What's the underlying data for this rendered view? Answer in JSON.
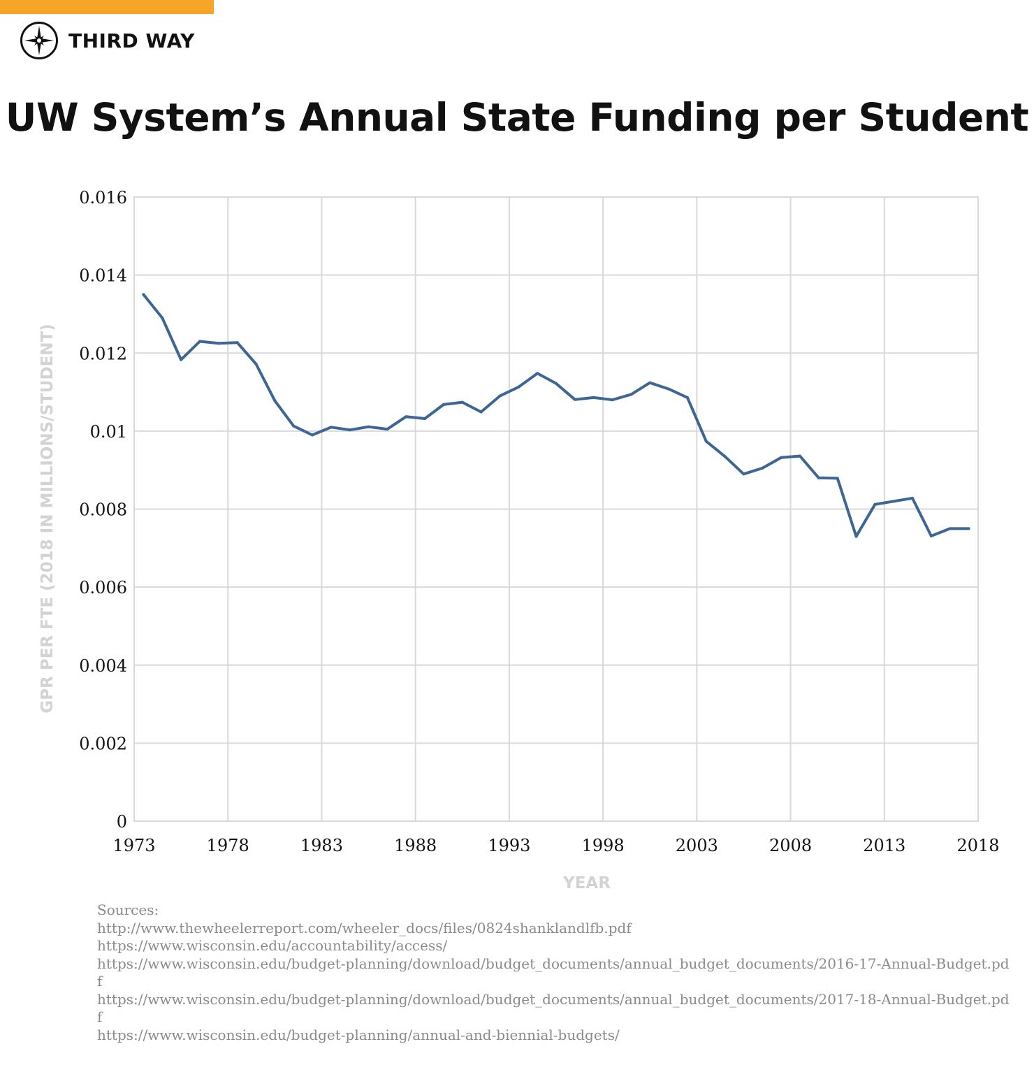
{
  "brand": {
    "name": "THIRD WAY",
    "accent_color": "#f7a527",
    "logo_icon": "compass-star-icon"
  },
  "chart_data": {
    "type": "line",
    "title": "UW System’s Annual State Funding per Student",
    "xlabel": "YEAR",
    "ylabel": "GPR PER FTE (2018 IN MILLIONS/STUDENT)",
    "x_ticks": [
      "1973",
      "1978",
      "1983",
      "1988",
      "1993",
      "1998",
      "2003",
      "2008",
      "2013",
      "2018"
    ],
    "y_ticks": [
      "0",
      "0.002",
      "0.004",
      "0.006",
      "0.008",
      "0.01",
      "0.012",
      "0.014",
      "0.016"
    ],
    "xlim": [
      1973,
      2018
    ],
    "ylim": [
      0,
      0.016
    ],
    "line_color": "#3e6694",
    "grid": true,
    "series": [
      {
        "name": "GPR per FTE",
        "x": [
          1973.5,
          1974.5,
          1975.5,
          1976.5,
          1977.5,
          1978.5,
          1979.5,
          1980.5,
          1981.5,
          1982.5,
          1983.5,
          1984.5,
          1985.5,
          1986.5,
          1987.5,
          1988.5,
          1989.5,
          1990.5,
          1991.5,
          1992.5,
          1993.5,
          1994.5,
          1995.5,
          1996.5,
          1997.5,
          1998.5,
          1999.5,
          2000.5,
          2001.5,
          2002.5,
          2003.5,
          2004.5,
          2005.5,
          2006.5,
          2007.5,
          2008.5,
          2009.5,
          2010.5,
          2011.5,
          2012.5,
          2013.5,
          2014.5,
          2015.5,
          2016.5,
          2017.5
        ],
        "values": [
          0.0135,
          0.0129,
          0.01183,
          0.0123,
          0.01225,
          0.01227,
          0.01172,
          0.01078,
          0.01013,
          0.0099,
          0.0101,
          0.01003,
          0.01011,
          0.01005,
          0.01037,
          0.01032,
          0.01068,
          0.01074,
          0.01049,
          0.0109,
          0.01113,
          0.01148,
          0.01122,
          0.01081,
          0.01086,
          0.0108,
          0.01094,
          0.01124,
          0.01108,
          0.01086,
          0.00974,
          0.00935,
          0.0089,
          0.00905,
          0.00932,
          0.00936,
          0.0088,
          0.00879,
          0.0073,
          0.00812,
          0.0082,
          0.00828,
          0.00731,
          0.0075,
          0.0075
        ]
      }
    ]
  },
  "sources": {
    "heading": "Sources:",
    "lines": [
      "http://www.thewheelerreport.com/wheeler_docs/files/0824shanklandlfb.pdf",
      "https://www.wisconsin.edu/accountability/access/",
      "https://www.wisconsin.edu/budget-planning/download/budget_documents/annual_budget_documents/2016-17-Annual-Budget.pdf",
      "https://www.wisconsin.edu/budget-planning/download/budget_documents/annual_budget_documents/2017-18-Annual-Budget.pdf",
      "https://www.wisconsin.edu/budget-planning/annual-and-biennial-budgets/"
    ]
  }
}
